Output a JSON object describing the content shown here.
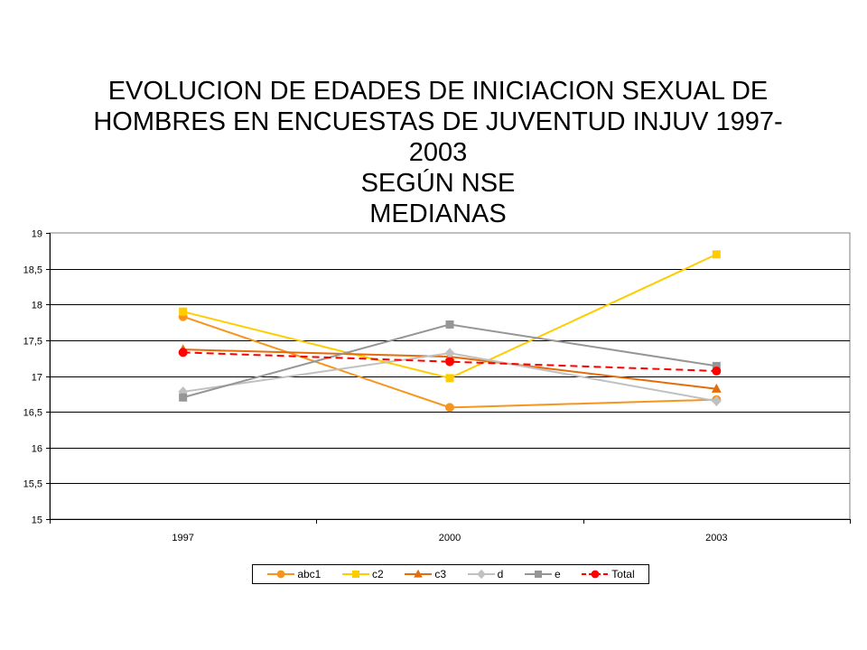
{
  "title_lines": [
    "EVOLUCION DE EDADES DE INICIACION SEXUAL DE",
    "HOMBRES EN ENCUESTAS DE JUVENTUD INJUV 1997-",
    "2003",
    "SEGÚN NSE",
    "MEDIANAS"
  ],
  "chart_data": {
    "type": "line",
    "categories": [
      "1997",
      "2000",
      "2003"
    ],
    "ylim": [
      15,
      19
    ],
    "yticks": [
      "15",
      "15,5",
      "16",
      "16,5",
      "17",
      "17,5",
      "18",
      "18,5",
      "19"
    ],
    "grid": true,
    "legend_position": "bottom",
    "series": [
      {
        "name": "abc1",
        "values": [
          17.83,
          16.56,
          16.67
        ],
        "color": "#F7941D",
        "marker": "circle",
        "dashed": false
      },
      {
        "name": "c2",
        "values": [
          17.9,
          16.97,
          18.7
        ],
        "color": "#FFCC00",
        "marker": "square",
        "dashed": false
      },
      {
        "name": "c3",
        "values": [
          17.37,
          17.27,
          16.82
        ],
        "color": "#E46C0A",
        "marker": "triangle",
        "dashed": false
      },
      {
        "name": "d",
        "values": [
          16.78,
          17.32,
          16.65
        ],
        "color": "#C0C0C0",
        "marker": "diamond",
        "dashed": false
      },
      {
        "name": "e",
        "values": [
          16.7,
          17.72,
          17.14
        ],
        "color": "#969696",
        "marker": "square",
        "dashed": false
      },
      {
        "name": "Total",
        "values": [
          17.33,
          17.2,
          17.07
        ],
        "color": "#FF0000",
        "marker": "circle",
        "dashed": true
      }
    ]
  }
}
